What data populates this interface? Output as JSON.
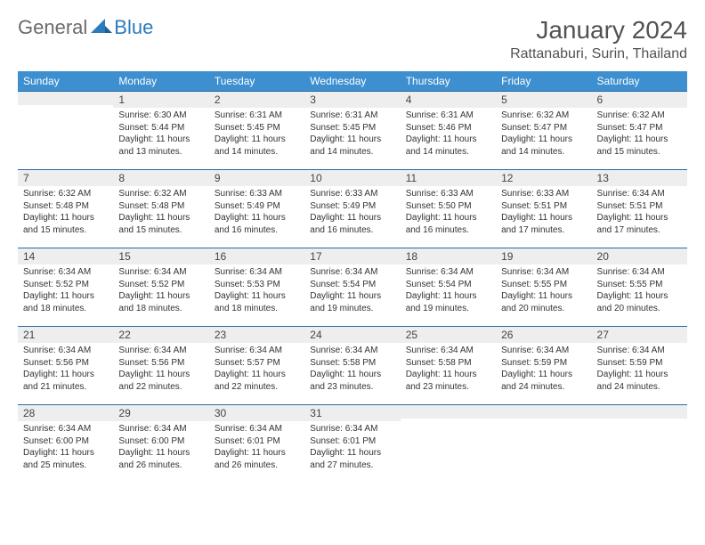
{
  "brand": {
    "general": "General",
    "blue": "Blue"
  },
  "title": "January 2024",
  "location": "Rattanaburi, Surin, Thailand",
  "colors": {
    "header_bg": "#3d8fcf",
    "header_text": "#ffffff",
    "daynum_bg": "#eeeeee",
    "border": "#2b6aa0",
    "text": "#333333",
    "title_text": "#525252",
    "brand_gray": "#6b6b6b",
    "brand_blue": "#2b7bbf"
  },
  "weekdays": [
    "Sunday",
    "Monday",
    "Tuesday",
    "Wednesday",
    "Thursday",
    "Friday",
    "Saturday"
  ],
  "weeks": [
    [
      null,
      {
        "n": "1",
        "sr": "Sunrise: 6:30 AM",
        "ss": "Sunset: 5:44 PM",
        "dl": "Daylight: 11 hours and 13 minutes."
      },
      {
        "n": "2",
        "sr": "Sunrise: 6:31 AM",
        "ss": "Sunset: 5:45 PM",
        "dl": "Daylight: 11 hours and 14 minutes."
      },
      {
        "n": "3",
        "sr": "Sunrise: 6:31 AM",
        "ss": "Sunset: 5:45 PM",
        "dl": "Daylight: 11 hours and 14 minutes."
      },
      {
        "n": "4",
        "sr": "Sunrise: 6:31 AM",
        "ss": "Sunset: 5:46 PM",
        "dl": "Daylight: 11 hours and 14 minutes."
      },
      {
        "n": "5",
        "sr": "Sunrise: 6:32 AM",
        "ss": "Sunset: 5:47 PM",
        "dl": "Daylight: 11 hours and 14 minutes."
      },
      {
        "n": "6",
        "sr": "Sunrise: 6:32 AM",
        "ss": "Sunset: 5:47 PM",
        "dl": "Daylight: 11 hours and 15 minutes."
      }
    ],
    [
      {
        "n": "7",
        "sr": "Sunrise: 6:32 AM",
        "ss": "Sunset: 5:48 PM",
        "dl": "Daylight: 11 hours and 15 minutes."
      },
      {
        "n": "8",
        "sr": "Sunrise: 6:32 AM",
        "ss": "Sunset: 5:48 PM",
        "dl": "Daylight: 11 hours and 15 minutes."
      },
      {
        "n": "9",
        "sr": "Sunrise: 6:33 AM",
        "ss": "Sunset: 5:49 PM",
        "dl": "Daylight: 11 hours and 16 minutes."
      },
      {
        "n": "10",
        "sr": "Sunrise: 6:33 AM",
        "ss": "Sunset: 5:49 PM",
        "dl": "Daylight: 11 hours and 16 minutes."
      },
      {
        "n": "11",
        "sr": "Sunrise: 6:33 AM",
        "ss": "Sunset: 5:50 PM",
        "dl": "Daylight: 11 hours and 16 minutes."
      },
      {
        "n": "12",
        "sr": "Sunrise: 6:33 AM",
        "ss": "Sunset: 5:51 PM",
        "dl": "Daylight: 11 hours and 17 minutes."
      },
      {
        "n": "13",
        "sr": "Sunrise: 6:34 AM",
        "ss": "Sunset: 5:51 PM",
        "dl": "Daylight: 11 hours and 17 minutes."
      }
    ],
    [
      {
        "n": "14",
        "sr": "Sunrise: 6:34 AM",
        "ss": "Sunset: 5:52 PM",
        "dl": "Daylight: 11 hours and 18 minutes."
      },
      {
        "n": "15",
        "sr": "Sunrise: 6:34 AM",
        "ss": "Sunset: 5:52 PM",
        "dl": "Daylight: 11 hours and 18 minutes."
      },
      {
        "n": "16",
        "sr": "Sunrise: 6:34 AM",
        "ss": "Sunset: 5:53 PM",
        "dl": "Daylight: 11 hours and 18 minutes."
      },
      {
        "n": "17",
        "sr": "Sunrise: 6:34 AM",
        "ss": "Sunset: 5:54 PM",
        "dl": "Daylight: 11 hours and 19 minutes."
      },
      {
        "n": "18",
        "sr": "Sunrise: 6:34 AM",
        "ss": "Sunset: 5:54 PM",
        "dl": "Daylight: 11 hours and 19 minutes."
      },
      {
        "n": "19",
        "sr": "Sunrise: 6:34 AM",
        "ss": "Sunset: 5:55 PM",
        "dl": "Daylight: 11 hours and 20 minutes."
      },
      {
        "n": "20",
        "sr": "Sunrise: 6:34 AM",
        "ss": "Sunset: 5:55 PM",
        "dl": "Daylight: 11 hours and 20 minutes."
      }
    ],
    [
      {
        "n": "21",
        "sr": "Sunrise: 6:34 AM",
        "ss": "Sunset: 5:56 PM",
        "dl": "Daylight: 11 hours and 21 minutes."
      },
      {
        "n": "22",
        "sr": "Sunrise: 6:34 AM",
        "ss": "Sunset: 5:56 PM",
        "dl": "Daylight: 11 hours and 22 minutes."
      },
      {
        "n": "23",
        "sr": "Sunrise: 6:34 AM",
        "ss": "Sunset: 5:57 PM",
        "dl": "Daylight: 11 hours and 22 minutes."
      },
      {
        "n": "24",
        "sr": "Sunrise: 6:34 AM",
        "ss": "Sunset: 5:58 PM",
        "dl": "Daylight: 11 hours and 23 minutes."
      },
      {
        "n": "25",
        "sr": "Sunrise: 6:34 AM",
        "ss": "Sunset: 5:58 PM",
        "dl": "Daylight: 11 hours and 23 minutes."
      },
      {
        "n": "26",
        "sr": "Sunrise: 6:34 AM",
        "ss": "Sunset: 5:59 PM",
        "dl": "Daylight: 11 hours and 24 minutes."
      },
      {
        "n": "27",
        "sr": "Sunrise: 6:34 AM",
        "ss": "Sunset: 5:59 PM",
        "dl": "Daylight: 11 hours and 24 minutes."
      }
    ],
    [
      {
        "n": "28",
        "sr": "Sunrise: 6:34 AM",
        "ss": "Sunset: 6:00 PM",
        "dl": "Daylight: 11 hours and 25 minutes."
      },
      {
        "n": "29",
        "sr": "Sunrise: 6:34 AM",
        "ss": "Sunset: 6:00 PM",
        "dl": "Daylight: 11 hours and 26 minutes."
      },
      {
        "n": "30",
        "sr": "Sunrise: 6:34 AM",
        "ss": "Sunset: 6:01 PM",
        "dl": "Daylight: 11 hours and 26 minutes."
      },
      {
        "n": "31",
        "sr": "Sunrise: 6:34 AM",
        "ss": "Sunset: 6:01 PM",
        "dl": "Daylight: 11 hours and 27 minutes."
      },
      null,
      null,
      null
    ]
  ]
}
